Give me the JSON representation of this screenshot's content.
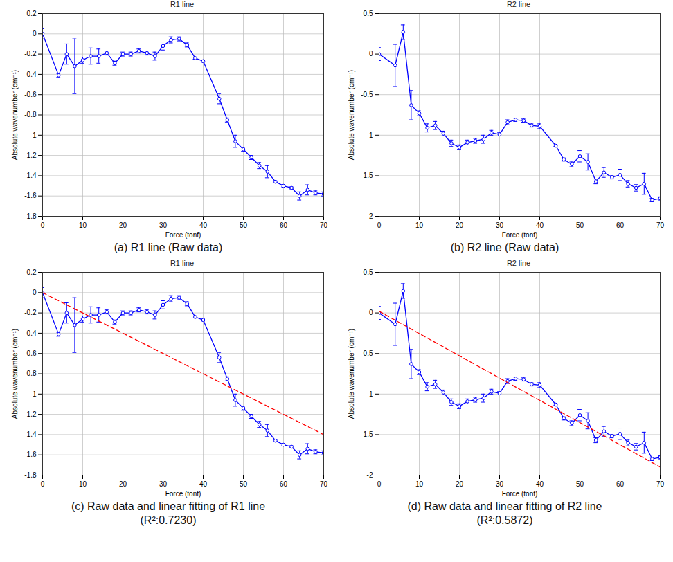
{
  "chart_data": [
    {
      "type": "line",
      "title": "R1 line",
      "x_label": "Force (tonf)",
      "y_label": "Absolute wavenumber (cm⁻¹)",
      "caption": [
        "(a) R1 line (Raw data)"
      ],
      "xlim": [
        0,
        70
      ],
      "xticks": [
        0,
        10,
        20,
        30,
        40,
        50,
        60,
        70
      ],
      "ylim": [
        -1.8,
        0.2
      ],
      "yticks": [
        -1.8,
        -1.6,
        -1.4,
        -1.2,
        -1,
        -0.8,
        -0.6,
        -0.4,
        -0.2,
        0,
        0.2
      ],
      "grid": true,
      "series": [
        {
          "color": "#0000ff",
          "marker": "circle",
          "x": [
            0,
            4,
            6,
            8,
            10,
            12,
            14,
            16,
            18,
            20,
            22,
            24,
            26,
            28,
            30,
            32,
            34,
            36,
            38,
            40,
            44,
            46,
            48,
            50,
            52,
            54,
            56,
            58,
            60,
            62,
            64,
            66,
            68,
            70
          ],
          "values": [
            0,
            -0.41,
            -0.2,
            -0.32,
            -0.26,
            -0.22,
            -0.22,
            -0.19,
            -0.29,
            -0.2,
            -0.2,
            -0.17,
            -0.19,
            -0.22,
            -0.12,
            -0.06,
            -0.05,
            -0.11,
            -0.24,
            -0.27,
            -0.64,
            -0.85,
            -1.06,
            -1.14,
            -1.22,
            -1.3,
            -1.36,
            -1.46,
            -1.5,
            -1.52,
            -1.6,
            -1.54,
            -1.57,
            -1.58
          ],
          "errors": [
            0.05,
            0.02,
            0.1,
            0.27,
            0.03,
            0.08,
            0.07,
            0.02,
            0.02,
            0.02,
            0.02,
            0.02,
            0.02,
            0.04,
            0.04,
            0.03,
            0.02,
            0.02,
            0.01,
            0.01,
            0.05,
            0.02,
            0.06,
            0.02,
            0.02,
            0.03,
            0.06,
            0.01,
            0.01,
            0.01,
            0.04,
            0.05,
            0.02,
            0.02
          ]
        }
      ]
    },
    {
      "type": "line",
      "title": "R2 line",
      "x_label": "Force (tonf)",
      "y_label": "Absolute wavenumber (cm⁻¹)",
      "caption": [
        "(b) R2 line (Raw data)"
      ],
      "xlim": [
        0,
        70
      ],
      "xticks": [
        0,
        10,
        20,
        30,
        40,
        50,
        60,
        70
      ],
      "ylim": [
        -2,
        0.5
      ],
      "yticks": [
        -2,
        -1.5,
        -1,
        -0.5,
        0,
        0.5
      ],
      "grid": true,
      "series": [
        {
          "color": "#0000ff",
          "marker": "circle",
          "x": [
            0,
            4,
            6,
            8,
            10,
            12,
            14,
            16,
            18,
            20,
            22,
            24,
            26,
            28,
            30,
            32,
            34,
            36,
            38,
            40,
            44,
            46,
            48,
            50,
            52,
            54,
            56,
            58,
            60,
            62,
            64,
            66,
            68,
            70
          ],
          "values": [
            0,
            -0.14,
            0.27,
            -0.63,
            -0.73,
            -0.91,
            -0.88,
            -0.98,
            -1.1,
            -1.15,
            -1.09,
            -1.07,
            -1.05,
            -0.97,
            -0.99,
            -0.84,
            -0.81,
            -0.82,
            -0.88,
            -0.89,
            -1.13,
            -1.3,
            -1.36,
            -1.26,
            -1.33,
            -1.57,
            -1.46,
            -1.52,
            -1.49,
            -1.6,
            -1.65,
            -1.6,
            -1.8,
            -1.78
          ],
          "errors": [
            0.08,
            0.26,
            0.09,
            0.18,
            0.03,
            0.05,
            0.05,
            0.03,
            0.04,
            0.03,
            0.03,
            0.03,
            0.05,
            0.03,
            0.02,
            0.03,
            0.02,
            0.02,
            0.02,
            0.03,
            0.01,
            0.02,
            0.03,
            0.07,
            0.1,
            0.03,
            0.06,
            0.02,
            0.07,
            0.04,
            0.04,
            0.13,
            0.02,
            0.02
          ]
        }
      ]
    },
    {
      "type": "line",
      "title": "R1 line",
      "x_label": "Force (tonf)",
      "y_label": "Absolute wavenumber (cm⁻¹)",
      "caption": [
        "(c) Raw data and linear fitting of R1 line",
        "(R²:0.7230)"
      ],
      "xlim": [
        0,
        70
      ],
      "xticks": [
        0,
        10,
        20,
        30,
        40,
        50,
        60,
        70
      ],
      "ylim": [
        -1.8,
        0.2
      ],
      "yticks": [
        -1.8,
        -1.6,
        -1.4,
        -1.2,
        -1,
        -0.8,
        -0.6,
        -0.4,
        -0.2,
        0,
        0.2
      ],
      "grid": true,
      "series": [
        {
          "color": "#0000ff",
          "marker": "circle",
          "x": [
            0,
            4,
            6,
            8,
            10,
            12,
            14,
            16,
            18,
            20,
            22,
            24,
            26,
            28,
            30,
            32,
            34,
            36,
            38,
            40,
            44,
            46,
            48,
            50,
            52,
            54,
            56,
            58,
            60,
            62,
            64,
            66,
            68,
            70
          ],
          "values": [
            0,
            -0.41,
            -0.2,
            -0.32,
            -0.26,
            -0.22,
            -0.22,
            -0.19,
            -0.29,
            -0.2,
            -0.2,
            -0.17,
            -0.19,
            -0.22,
            -0.12,
            -0.06,
            -0.05,
            -0.11,
            -0.24,
            -0.27,
            -0.64,
            -0.85,
            -1.06,
            -1.14,
            -1.22,
            -1.3,
            -1.36,
            -1.46,
            -1.5,
            -1.52,
            -1.6,
            -1.54,
            -1.57,
            -1.58
          ],
          "errors": [
            0.05,
            0.02,
            0.1,
            0.27,
            0.03,
            0.08,
            0.07,
            0.02,
            0.02,
            0.02,
            0.02,
            0.02,
            0.02,
            0.04,
            0.04,
            0.03,
            0.02,
            0.02,
            0.01,
            0.01,
            0.05,
            0.02,
            0.06,
            0.02,
            0.02,
            0.03,
            0.06,
            0.01,
            0.01,
            0.01,
            0.04,
            0.05,
            0.02,
            0.02
          ]
        },
        {
          "color": "#ff0000",
          "line_style": "dashed",
          "x": [
            0,
            70
          ],
          "values": [
            0,
            -1.4
          ]
        }
      ]
    },
    {
      "type": "line",
      "title": "R2 line",
      "x_label": "Force (tonf)",
      "y_label": "Absolute wavenumber (cm⁻¹)",
      "caption": [
        "(d) Raw data and linear fitting of R2 line",
        "(R²:0.5872)"
      ],
      "xlim": [
        0,
        70
      ],
      "xticks": [
        0,
        10,
        20,
        30,
        40,
        50,
        60,
        70
      ],
      "ylim": [
        -2,
        0.5
      ],
      "yticks": [
        -2,
        -1.5,
        -1,
        -0.5,
        0,
        0.5
      ],
      "grid": true,
      "series": [
        {
          "color": "#0000ff",
          "marker": "circle",
          "x": [
            0,
            4,
            6,
            8,
            10,
            12,
            14,
            16,
            18,
            20,
            22,
            24,
            26,
            28,
            30,
            32,
            34,
            36,
            38,
            40,
            44,
            46,
            48,
            50,
            52,
            54,
            56,
            58,
            60,
            62,
            64,
            66,
            68,
            70
          ],
          "values": [
            0,
            -0.14,
            0.27,
            -0.63,
            -0.73,
            -0.91,
            -0.88,
            -0.98,
            -1.1,
            -1.15,
            -1.09,
            -1.07,
            -1.05,
            -0.97,
            -0.99,
            -0.84,
            -0.81,
            -0.82,
            -0.88,
            -0.89,
            -1.13,
            -1.3,
            -1.36,
            -1.26,
            -1.33,
            -1.57,
            -1.46,
            -1.52,
            -1.49,
            -1.6,
            -1.65,
            -1.6,
            -1.8,
            -1.78
          ],
          "errors": [
            0.08,
            0.26,
            0.09,
            0.18,
            0.03,
            0.05,
            0.05,
            0.03,
            0.04,
            0.03,
            0.03,
            0.03,
            0.05,
            0.03,
            0.02,
            0.03,
            0.02,
            0.02,
            0.02,
            0.03,
            0.01,
            0.02,
            0.03,
            0.07,
            0.1,
            0.03,
            0.06,
            0.02,
            0.07,
            0.04,
            0.04,
            0.13,
            0.02,
            0.02
          ]
        },
        {
          "color": "#ff0000",
          "line_style": "dashed",
          "x": [
            0,
            70
          ],
          "values": [
            0.02,
            -1.9
          ]
        }
      ]
    }
  ]
}
